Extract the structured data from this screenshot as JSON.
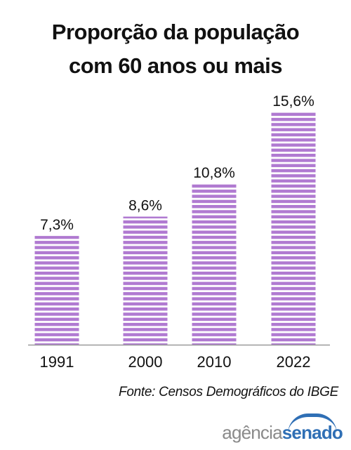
{
  "chart_data": {
    "type": "bar",
    "title_lines": [
      "Proporção da população",
      "com 60 anos ou mais"
    ],
    "categories": [
      "1991",
      "2000",
      "2010",
      "2022"
    ],
    "values": [
      7.3,
      8.6,
      10.8,
      15.6
    ],
    "value_labels": [
      "7,3%",
      "8,6%",
      "10,8%",
      "15,6%"
    ],
    "ylim": [
      0,
      16
    ],
    "grid": false,
    "bar_color": "#b07ad1",
    "bar_stripe_color": "#ffffff"
  },
  "source": "Fonte: Censos Demográficos do IBGE",
  "logo": {
    "part1": "agência",
    "part2": "senado",
    "color_gray": "#8a8a8a",
    "color_blue": "#2f6fb5"
  }
}
